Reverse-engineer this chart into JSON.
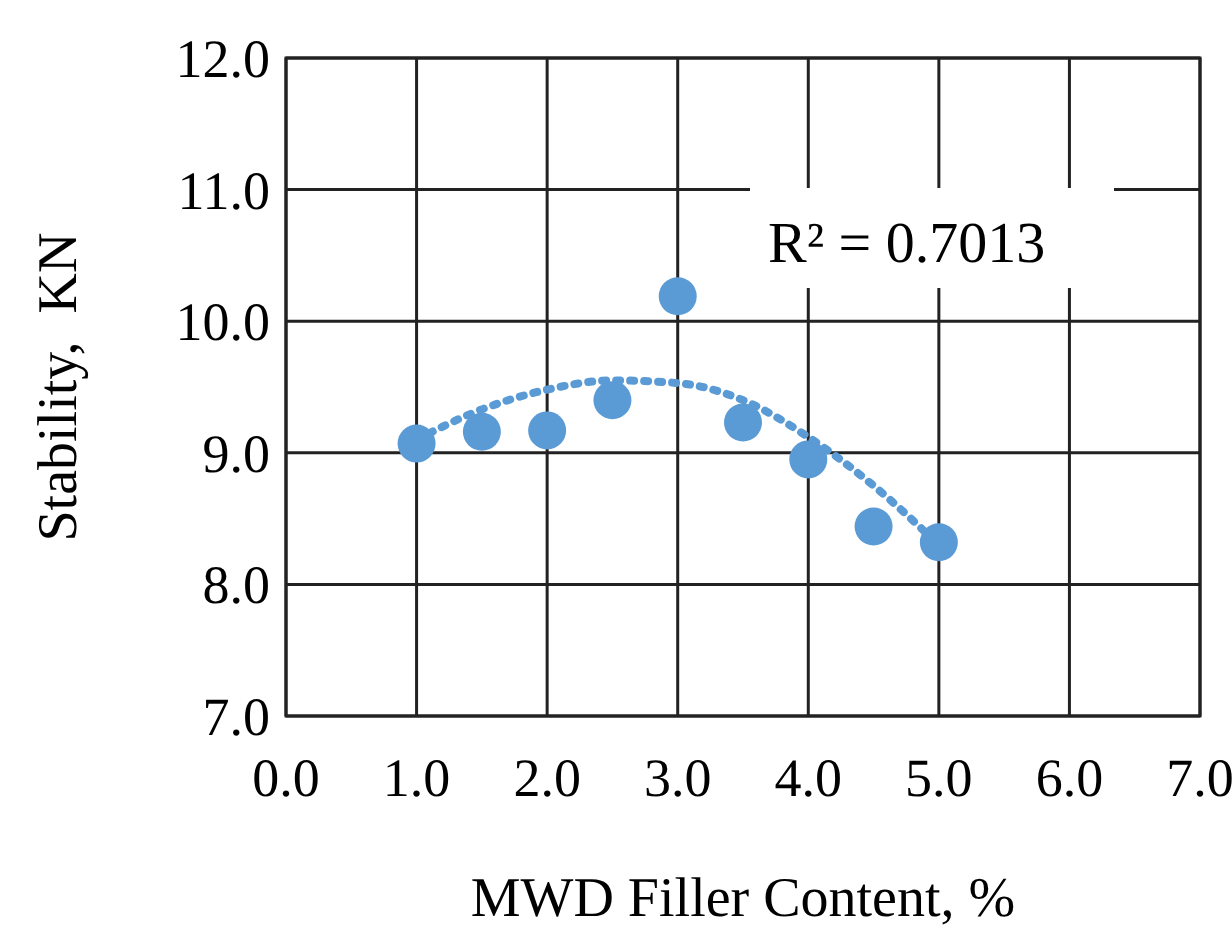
{
  "chart_data": {
    "type": "scatter",
    "xlabel": "MWD Filler Content, %",
    "ylabel": "Stability,  KN",
    "xlim": [
      0,
      7
    ],
    "ylim": [
      7,
      12
    ],
    "xticks": [
      {
        "value": 0,
        "label": "0.0"
      },
      {
        "value": 1,
        "label": "1.0"
      },
      {
        "value": 2,
        "label": "2.0"
      },
      {
        "value": 3,
        "label": "3.0"
      },
      {
        "value": 4,
        "label": "4.0"
      },
      {
        "value": 5,
        "label": "5.0"
      },
      {
        "value": 6,
        "label": "6.0"
      },
      {
        "value": 7,
        "label": "7.0"
      }
    ],
    "yticks": [
      {
        "value": 7,
        "label": "7.0"
      },
      {
        "value": 8,
        "label": "8.0"
      },
      {
        "value": 9,
        "label": "9.0"
      },
      {
        "value": 10,
        "label": "10.0"
      },
      {
        "value": 11,
        "label": "11.0"
      },
      {
        "value": 12,
        "label": "12.0"
      }
    ],
    "grid": true,
    "marker": "circle",
    "annotations": [
      "R² = 0.7013"
    ],
    "series": [
      {
        "color": "#5b9bd5",
        "x": [
          1,
          1.5,
          2,
          2.5,
          3,
          3.5,
          4,
          4.5,
          5
        ],
        "values": [
          9.07,
          9.16,
          9.17,
          9.4,
          10.19,
          9.23,
          8.95,
          8.44,
          8.32
        ]
      },
      {
        "type": "line",
        "line_style": "dotted",
        "marker": "none",
        "color": "#5b9bd5",
        "x": [
          1,
          1.5,
          2,
          2.5,
          3,
          3.5,
          4,
          4.5,
          5
        ],
        "values": [
          9.1,
          9.33,
          9.48,
          9.55,
          9.53,
          9.4,
          9.12,
          8.75,
          8.3
        ]
      }
    ]
  }
}
